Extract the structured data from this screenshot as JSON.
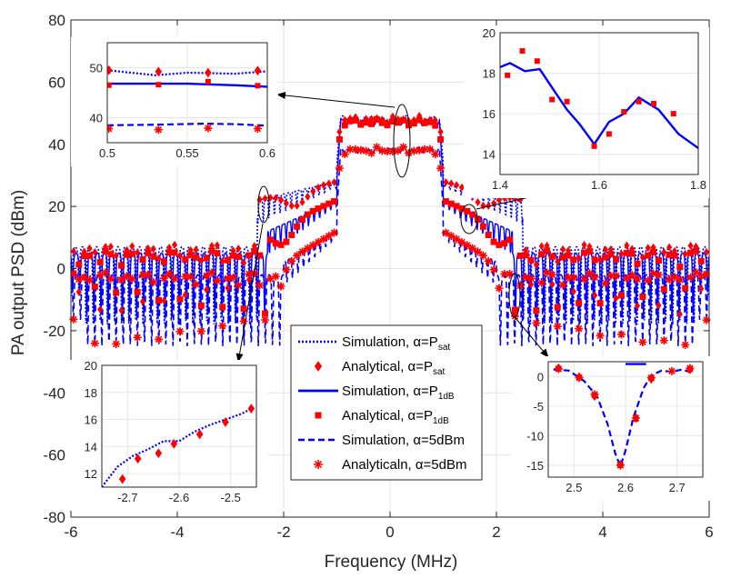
{
  "chart_data": {
    "type": "line",
    "xlabel": "Frequency (MHz)",
    "ylabel": "PA output PSD (dBm)",
    "xlim": [
      -6,
      6
    ],
    "ylim": [
      -80,
      80
    ],
    "xticks": [
      "-6",
      "-4",
      "-2",
      "0",
      "2",
      "4",
      "6"
    ],
    "yticks": [
      "-80",
      "-60",
      "-40",
      "-20",
      "0",
      "20",
      "40",
      "60",
      "80"
    ],
    "grid": true,
    "colors": {
      "simulation": "#0000ff",
      "analytical": "#ff0000"
    },
    "legend": [
      {
        "label": "Simulation, α=P",
        "sub": "sat",
        "style": "dotted",
        "marker": "none"
      },
      {
        "label": "Analytical, α=P",
        "sub": "sat",
        "style": "none",
        "marker": "diamond"
      },
      {
        "label": "Simulation, α=P",
        "sub": "1dB",
        "style": "solid",
        "marker": "none"
      },
      {
        "label": "Analytical, α=P",
        "sub": "1dB",
        "style": "none",
        "marker": "square"
      },
      {
        "label": "Simulation, α=5dBm",
        "sub": "",
        "style": "dashed",
        "marker": "none"
      },
      {
        "label": "Analyticaln, α=5dBm",
        "sub": "",
        "style": "none",
        "marker": "asterisk"
      }
    ],
    "series": [
      {
        "name": "Psat",
        "inband": 48,
        "shoulder_start": 28,
        "shoulder_end": 22,
        "edge": 2.5,
        "floor": 5,
        "notch": -18,
        "style": "dotted"
      },
      {
        "name": "P1dB",
        "inband": 47,
        "shoulder_start": 22,
        "shoulder_end": 12,
        "edge": 2.3,
        "floor": 3,
        "notch": -15,
        "style": "solid"
      },
      {
        "name": "5dBm",
        "inband": 38,
        "shoulder_start": 12,
        "shoulder_end": 2,
        "edge": 2.0,
        "floor": -4,
        "notch": -25,
        "style": "dashed"
      }
    ],
    "insets": [
      {
        "id": "inset-top-left",
        "xlim": [
          0.5,
          0.6
        ],
        "ylim": [
          35,
          55
        ],
        "xticks": [
          "0.5",
          "0.55",
          "0.6"
        ],
        "yticks": [
          "40",
          "50"
        ],
        "dotted_line": [
          [
            0.5,
            49.5
          ],
          [
            0.53,
            48.5
          ],
          [
            0.55,
            49
          ],
          [
            0.58,
            48.8
          ],
          [
            0.6,
            49.3
          ]
        ],
        "solid_line": [
          [
            0.5,
            46.8
          ],
          [
            0.55,
            46.8
          ],
          [
            0.58,
            46.5
          ],
          [
            0.6,
            46.2
          ]
        ],
        "dashed_line": [
          [
            0.5,
            38.5
          ],
          [
            0.53,
            38.6
          ],
          [
            0.56,
            38.8
          ],
          [
            0.58,
            38.7
          ],
          [
            0.6,
            38.4
          ]
        ],
        "diamonds": [
          [
            0.501,
            49.5
          ],
          [
            0.532,
            49.2
          ],
          [
            0.563,
            49.0
          ],
          [
            0.594,
            49.4
          ]
        ],
        "squares": [
          [
            0.501,
            46.5
          ],
          [
            0.532,
            46.6
          ],
          [
            0.563,
            47.2
          ],
          [
            0.594,
            46.4
          ]
        ],
        "asterisks": [
          [
            0.501,
            37.8
          ],
          [
            0.532,
            37.6
          ],
          [
            0.563,
            37.9
          ],
          [
            0.594,
            37.8
          ]
        ]
      },
      {
        "id": "inset-top-right",
        "xlim": [
          1.4,
          1.8
        ],
        "ylim": [
          13,
          20
        ],
        "xticks": [
          "1.4",
          "1.6",
          "1.8"
        ],
        "yticks": [
          "14",
          "16",
          "18",
          "20"
        ],
        "solid_line": [
          [
            1.4,
            18.3
          ],
          [
            1.42,
            18.5
          ],
          [
            1.45,
            18.1
          ],
          [
            1.48,
            18.2
          ],
          [
            1.51,
            17.1
          ],
          [
            1.535,
            16.2
          ],
          [
            1.56,
            15.5
          ],
          [
            1.59,
            14.5
          ],
          [
            1.62,
            15.6
          ],
          [
            1.65,
            16.0
          ],
          [
            1.68,
            16.8
          ],
          [
            1.72,
            16.2
          ],
          [
            1.76,
            15.0
          ],
          [
            1.8,
            14.3
          ]
        ],
        "squares": [
          [
            1.415,
            17.9
          ],
          [
            1.445,
            19.1
          ],
          [
            1.475,
            18.6
          ],
          [
            1.505,
            16.7
          ],
          [
            1.535,
            16.6
          ],
          [
            1.59,
            14.4
          ],
          [
            1.62,
            15.0
          ],
          [
            1.65,
            16.1
          ],
          [
            1.68,
            16.6
          ],
          [
            1.71,
            16.5
          ],
          [
            1.75,
            16.0
          ]
        ]
      },
      {
        "id": "inset-bottom-left",
        "xlim": [
          -2.75,
          -2.45
        ],
        "ylim": [
          11,
          20
        ],
        "xticks": [
          "-2.7",
          "-2.6",
          "-2.5"
        ],
        "yticks": [
          "12",
          "14",
          "16",
          "18",
          "20"
        ],
        "dotted_line": [
          [
            -2.75,
            11
          ],
          [
            -2.72,
            12.5
          ],
          [
            -2.69,
            13.3
          ],
          [
            -2.66,
            13.8
          ],
          [
            -2.63,
            14.4
          ],
          [
            -2.6,
            14.4
          ],
          [
            -2.57,
            15.1
          ],
          [
            -2.54,
            15.6
          ],
          [
            -2.51,
            16.0
          ],
          [
            -2.48,
            16.4
          ],
          [
            -2.455,
            16.9
          ]
        ],
        "diamonds": [
          [
            -2.71,
            11.6
          ],
          [
            -2.68,
            13.1
          ],
          [
            -2.64,
            13.5
          ],
          [
            -2.61,
            14.2
          ],
          [
            -2.56,
            14.9
          ],
          [
            -2.51,
            15.8
          ],
          [
            -2.46,
            16.8
          ]
        ]
      },
      {
        "id": "inset-bottom-right",
        "xlim": [
          2.45,
          2.75
        ],
        "ylim": [
          -17,
          2.5
        ],
        "xticks": [
          "2.5",
          "2.6",
          "2.7"
        ],
        "yticks": [
          "-15",
          "-10",
          "-5",
          "0"
        ],
        "dashed_line": [
          [
            2.46,
            1.2
          ],
          [
            2.49,
            1.0
          ],
          [
            2.52,
            -0.8
          ],
          [
            2.545,
            -3.4
          ],
          [
            2.565,
            -8
          ],
          [
            2.58,
            -13
          ],
          [
            2.59,
            -15.2
          ],
          [
            2.6,
            -12.5
          ],
          [
            2.615,
            -7
          ],
          [
            2.635,
            -2
          ],
          [
            2.65,
            0.2
          ],
          [
            2.67,
            1.0
          ],
          [
            2.69,
            0.8
          ],
          [
            2.71,
            1.2
          ],
          [
            2.73,
            0.6
          ]
        ],
        "solid_segment": [
          [
            2.6,
            2.1
          ],
          [
            2.64,
            2.1
          ]
        ],
        "asterisks": [
          [
            2.47,
            1.3
          ],
          [
            2.51,
            -0.2
          ],
          [
            2.54,
            -3.0
          ],
          [
            2.59,
            -15.0
          ],
          [
            2.62,
            -7.0
          ],
          [
            2.65,
            -0.2
          ],
          [
            2.69,
            0.9
          ],
          [
            2.725,
            1.4
          ]
        ],
        "squares": [
          [
            2.47,
            1.3
          ],
          [
            2.51,
            -0.2
          ],
          [
            2.54,
            -3.2
          ],
          [
            2.59,
            -15.0
          ],
          [
            2.62,
            -7.2
          ],
          [
            2.65,
            -0.3
          ],
          [
            2.725,
            1.2
          ]
        ],
        "diamonds": [
          [
            2.47,
            1.4
          ],
          [
            2.51,
            -0.1
          ],
          [
            2.54,
            -3.3
          ],
          [
            2.59,
            -14.9
          ],
          [
            2.62,
            -7.0
          ],
          [
            2.65,
            -0.4
          ],
          [
            2.725,
            1.2
          ]
        ]
      }
    ]
  }
}
